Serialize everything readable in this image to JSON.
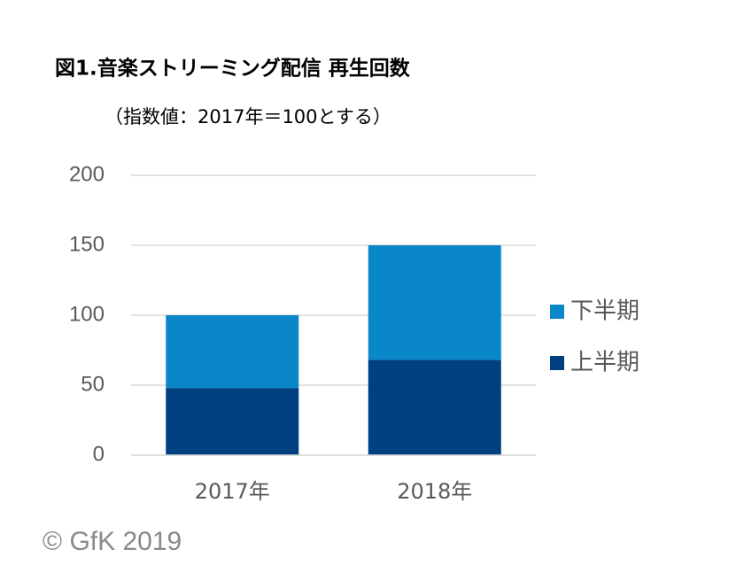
{
  "chart_data": {
    "type": "stacked_bar",
    "title": "図1.音楽ストリーミング配信 再生回数",
    "subtitle": "（指数値：2017年＝100とする）",
    "categories": [
      "2017年",
      "2018年"
    ],
    "series": [
      {
        "name": "上半期",
        "color": "#003f80",
        "values": [
          48,
          68
        ]
      },
      {
        "name": "下半期",
        "color": "#0a87c8",
        "values": [
          52,
          82
        ]
      }
    ],
    "ylim": [
      0,
      200
    ],
    "yticks": [
      0,
      50,
      100,
      150,
      200
    ],
    "grid": true,
    "legend": "right",
    "footer": "© GfK 2019"
  }
}
